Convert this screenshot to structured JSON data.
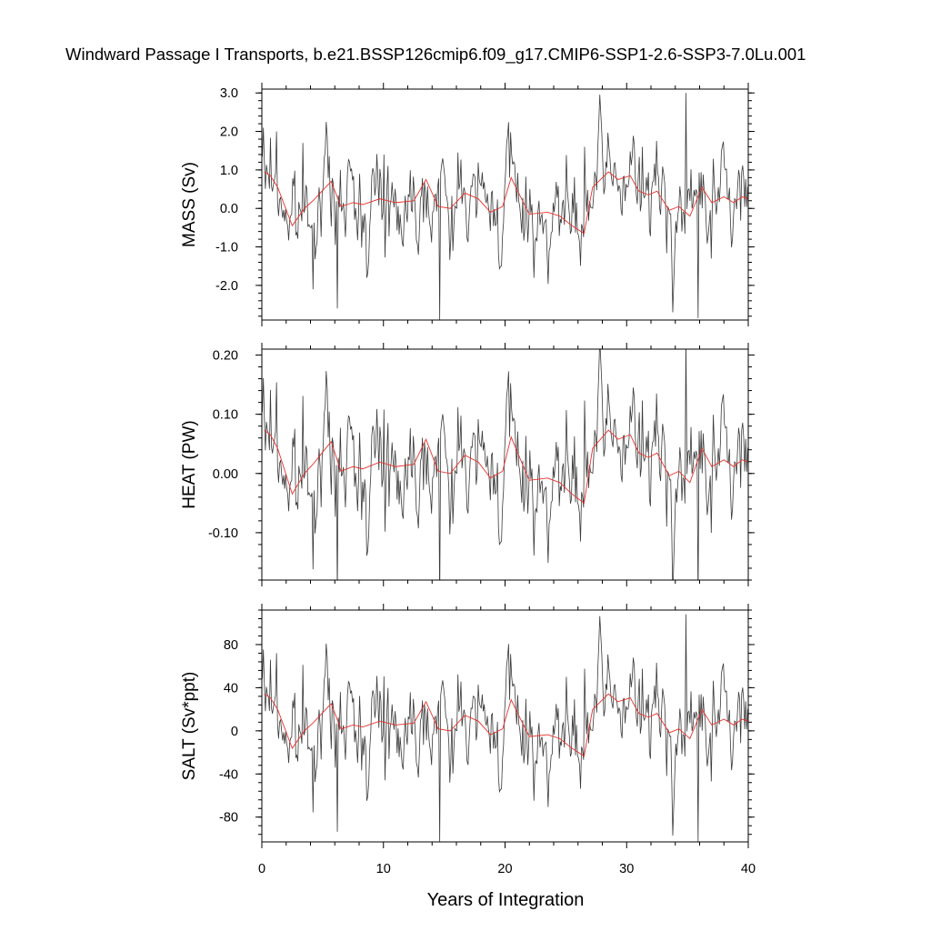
{
  "chart_data": {
    "title": "Windward Passage I Transports, b.e21.BSSP126cmip6.f09_g17.CMIP6-SSP1-2.6-SSP3-7.0Lu.001",
    "xlabel": "Years of Integration",
    "xlim": [
      0,
      40
    ],
    "x_ticks": [
      0,
      10,
      20,
      30,
      40
    ],
    "smooth_knots_x": [
      0.2,
      0.7,
      1.3,
      2.5,
      3.5,
      4.2,
      5.7,
      6.5,
      7.5,
      8.3,
      9.7,
      11,
      12.5,
      13.5,
      14.5,
      15.5,
      16.7,
      17.8,
      18.8,
      19.8,
      20.5,
      21.2,
      22,
      23.5,
      24.5,
      25.5,
      26.5,
      27.2,
      28.5,
      29.3,
      30.3,
      31,
      31.8,
      32.5,
      33.5,
      34.3,
      35.2,
      36.2,
      37,
      38,
      38.8,
      39.5,
      40
    ],
    "smooth_knots_norm": [
      0.95,
      0.85,
      0.55,
      -0.45,
      0.0,
      0.2,
      0.7,
      0.05,
      0.15,
      0.1,
      0.25,
      0.15,
      0.2,
      0.75,
      0.05,
      0.0,
      0.4,
      0.25,
      -0.1,
      0.05,
      0.8,
      0.35,
      -0.15,
      -0.1,
      -0.2,
      -0.45,
      -0.65,
      0.55,
      0.95,
      0.75,
      0.85,
      0.45,
      0.35,
      0.45,
      -0.05,
      0.05,
      -0.2,
      0.55,
      0.15,
      0.3,
      0.15,
      0.3,
      0.25
    ],
    "raw_series_seed": 7,
    "panels": [
      {
        "name": "MASS",
        "ylabel": "MASS (Sv)",
        "type": "line",
        "ylim": [
          -2.9,
          3.1
        ],
        "y_ticks": [
          3.0,
          2.0,
          1.0,
          0.0,
          -1.0,
          -2.0
        ],
        "y_tick_labels": [
          "3.0",
          "2.0",
          "1.0",
          "0.0",
          "-1.0",
          "-2.0"
        ],
        "scale": 1.0,
        "series": [
          {
            "style": "raw monthly (dark gray)",
            "min": -2.9,
            "max": 3.1
          },
          {
            "style": "annual mean (red)"
          }
        ]
      },
      {
        "name": "HEAT",
        "ylabel": "HEAT (PW)",
        "type": "line",
        "ylim": [
          -0.18,
          0.21
        ],
        "y_ticks": [
          0.2,
          0.1,
          0.0,
          -0.1
        ],
        "y_tick_labels": [
          "0.20",
          "0.10",
          "0.00",
          "-0.10"
        ],
        "scale": 0.077,
        "series": [
          {
            "style": "raw monthly (dark gray)",
            "min": -0.18,
            "max": 0.21
          },
          {
            "style": "annual mean (red)"
          }
        ]
      },
      {
        "name": "SALT",
        "ylabel": "SALT (Sv*ppt)",
        "type": "line",
        "ylim": [
          -103,
          112
        ],
        "y_ticks": [
          80,
          40,
          0,
          -40,
          -80
        ],
        "y_tick_labels": [
          "80",
          "40",
          "0",
          "-40",
          "-80"
        ],
        "scale": 36,
        "series": [
          {
            "style": "raw monthly (dark gray)",
            "min": -103,
            "max": 112
          },
          {
            "style": "annual mean (red)"
          }
        ]
      }
    ]
  }
}
